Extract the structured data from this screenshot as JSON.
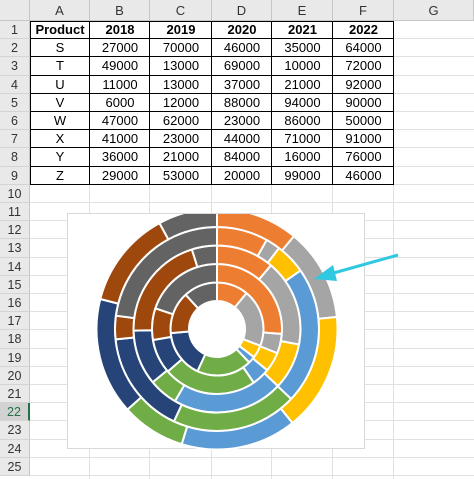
{
  "spreadsheet": {
    "columns": [
      "A",
      "B",
      "C",
      "D",
      "E",
      "F",
      "G"
    ],
    "rows": [
      "1",
      "2",
      "3",
      "4",
      "5",
      "6",
      "7",
      "8",
      "9",
      "10",
      "11",
      "12",
      "13",
      "14",
      "15",
      "16",
      "17",
      "18",
      "19",
      "20",
      "21",
      "22",
      "23",
      "24",
      "25"
    ],
    "selected_row": "22",
    "table": {
      "headers": [
        "Product",
        "2018",
        "2019",
        "2020",
        "2021",
        "2022"
      ],
      "rows": [
        [
          "S",
          "27000",
          "70000",
          "46000",
          "35000",
          "64000"
        ],
        [
          "T",
          "49000",
          "13000",
          "69000",
          "10000",
          "72000"
        ],
        [
          "U",
          "11000",
          "13000",
          "37000",
          "21000",
          "92000"
        ],
        [
          "V",
          "6000",
          "12000",
          "88000",
          "94000",
          "90000"
        ],
        [
          "W",
          "47000",
          "62000",
          "23000",
          "86000",
          "50000"
        ],
        [
          "X",
          "41000",
          "23000",
          "44000",
          "71000",
          "91000"
        ],
        [
          "Y",
          "36000",
          "21000",
          "84000",
          "16000",
          "76000"
        ],
        [
          "Z",
          "29000",
          "53000",
          "20000",
          "99000",
          "46000"
        ]
      ]
    }
  },
  "chart_data": {
    "type": "doughnut",
    "categories": [
      "S",
      "T",
      "U",
      "V",
      "W",
      "X",
      "Y",
      "Z"
    ],
    "series": [
      {
        "values": [
          27000,
          49000,
          11000,
          6000,
          47000,
          41000,
          36000,
          29000
        ]
      },
      {
        "values": [
          70000,
          13000,
          13000,
          12000,
          62000,
          23000,
          21000,
          53000
        ]
      },
      {
        "values": [
          46000,
          69000,
          37000,
          88000,
          23000,
          44000,
          84000,
          20000
        ]
      },
      {
        "values": [
          35000,
          10000,
          21000,
          94000,
          86000,
          71000,
          16000,
          99000
        ]
      },
      {
        "values": [
          64000,
          72000,
          92000,
          90000,
          50000,
          91000,
          76000,
          46000
        ]
      }
    ],
    "colors": [
      "#ed7d31",
      "#a5a5a5",
      "#ffc000",
      "#5b9bd5",
      "#70ad47",
      "#264478",
      "#9e480e",
      "#636363"
    ],
    "annotation_arrow_color": "#2ec8e0"
  }
}
